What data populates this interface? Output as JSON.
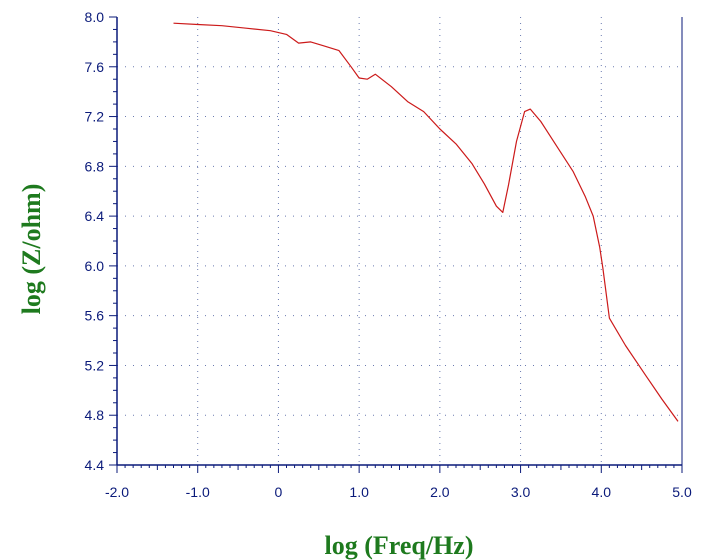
{
  "chart_data": {
    "type": "line",
    "title": "",
    "xlabel": "log (Freq/Hz)",
    "ylabel": "log (Z/ohm)",
    "xlim": [
      -2.0,
      5.0
    ],
    "ylim": [
      4.4,
      8.0
    ],
    "x_ticks": [
      -2.0,
      -1.0,
      0.0,
      1.0,
      2.0,
      3.0,
      4.0,
      5.0
    ],
    "x_tick_labels": [
      "-2.0",
      "-1.0",
      "0",
      "1.0",
      "2.0",
      "3.0",
      "4.0",
      "5.0"
    ],
    "y_ticks": [
      4.4,
      4.8,
      5.2,
      5.6,
      6.0,
      6.4,
      6.8,
      7.2,
      7.6,
      8.0
    ],
    "y_tick_labels": [
      "4.4",
      "4.8",
      "5.2",
      "5.6",
      "6.0",
      "6.4",
      "6.8",
      "7.2",
      "7.6",
      "8.0"
    ],
    "grid": true,
    "colors": {
      "axis": "#0a1a7a",
      "series": "#cc1a1a",
      "grid": "#6b7bb0",
      "axis_title": "#1e7a1e"
    },
    "series": [
      {
        "x": [
          -1.3,
          -1.0,
          -0.7,
          -0.4,
          -0.1,
          0.1,
          0.25,
          0.4,
          0.55,
          0.75,
          0.9,
          1.0,
          1.1,
          1.2,
          1.4,
          1.6,
          1.8,
          2.0,
          2.2,
          2.4,
          2.55,
          2.7,
          2.78,
          2.85,
          2.95,
          3.05,
          3.12,
          3.25,
          3.45,
          3.65,
          3.8,
          3.9,
          3.98,
          4.02,
          4.1,
          4.3,
          4.55,
          4.75,
          4.95
        ],
        "y": [
          7.95,
          7.94,
          7.93,
          7.91,
          7.89,
          7.86,
          7.79,
          7.8,
          7.77,
          7.73,
          7.6,
          7.51,
          7.5,
          7.54,
          7.44,
          7.32,
          7.24,
          7.1,
          6.98,
          6.82,
          6.66,
          6.48,
          6.43,
          6.65,
          7.0,
          7.24,
          7.26,
          7.16,
          6.96,
          6.76,
          6.56,
          6.4,
          6.15,
          5.98,
          5.58,
          5.36,
          5.12,
          4.93,
          4.75
        ]
      }
    ]
  }
}
